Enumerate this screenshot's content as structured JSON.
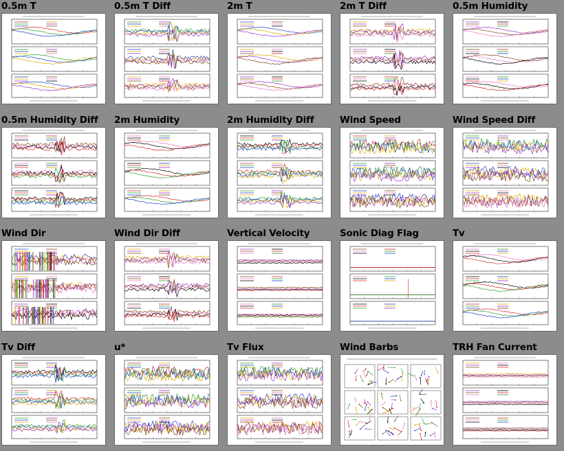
{
  "page": {
    "background": "#8c8c8c"
  },
  "plots": [
    {
      "title": "0.5m T",
      "kind": "line3"
    },
    {
      "title": "0.5m T Diff",
      "kind": "diff3"
    },
    {
      "title": "2m T",
      "kind": "line3"
    },
    {
      "title": "2m T Diff",
      "kind": "diff3"
    },
    {
      "title": "0.5m Humidity",
      "kind": "line3"
    },
    {
      "title": "0.5m Humidity Diff",
      "kind": "diff3"
    },
    {
      "title": "2m Humidity",
      "kind": "line3"
    },
    {
      "title": "2m Humidity Diff",
      "kind": "diff3"
    },
    {
      "title": "Wind Speed",
      "kind": "noisy3"
    },
    {
      "title": "Wind Speed Diff",
      "kind": "noisy3"
    },
    {
      "title": "Wind Dir",
      "kind": "bars3"
    },
    {
      "title": "Wind Dir Diff",
      "kind": "diff3"
    },
    {
      "title": "Vertical Velocity",
      "kind": "flat3"
    },
    {
      "title": "Sonic Diag Flag",
      "kind": "flag3"
    },
    {
      "title": "Tv",
      "kind": "line3"
    },
    {
      "title": "Tv Diff",
      "kind": "diff3"
    },
    {
      "title": "u*",
      "kind": "noisy3"
    },
    {
      "title": "Tv Flux",
      "kind": "noisy3"
    },
    {
      "title": "Wind Barbs",
      "kind": "barbs"
    },
    {
      "title": "TRH Fan Current",
      "kind": "flat3"
    }
  ],
  "colors": {
    "series": [
      "#d62728",
      "#2ca02c",
      "#1f3fbf",
      "#e0a800",
      "#9b30c8",
      "#7a4a10",
      "#e377c2",
      "#000000"
    ]
  }
}
